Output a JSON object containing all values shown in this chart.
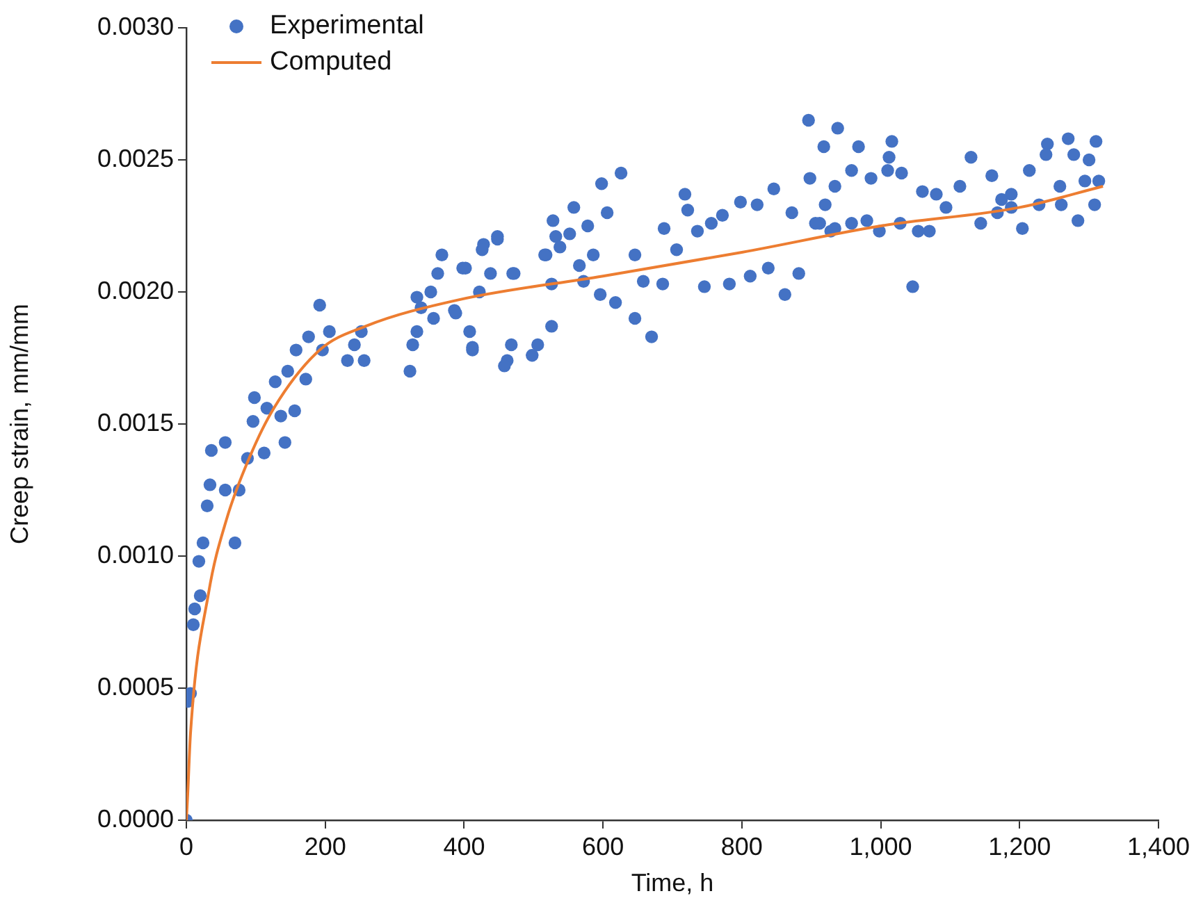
{
  "chart_data": {
    "type": "scatter",
    "xlabel": "Time, h",
    "ylabel": "Creep strain, mm/mm",
    "xlim": [
      0,
      1400
    ],
    "ylim": [
      0,
      0.003
    ],
    "xticks": [
      0,
      200,
      400,
      600,
      800,
      {
        "value": 1000,
        "label": "1,000"
      },
      {
        "value": 1200,
        "label": "1,200"
      },
      {
        "value": 1400,
        "label": "1,400"
      }
    ],
    "yticks": [
      {
        "value": 0,
        "label": "0.0000"
      },
      0.0005,
      {
        "value": 0.001,
        "label": "0.0010"
      },
      0.0015,
      {
        "value": 0.002,
        "label": "0.0020"
      },
      0.0025,
      {
        "value": 0.003,
        "label": "0.0030"
      }
    ],
    "legend": "top left",
    "series": [
      {
        "name": "Experimental",
        "marker": "circle",
        "color": "#4472c4",
        "x": [
          0,
          2,
          6,
          10,
          12,
          20,
          18,
          24,
          30,
          34,
          36,
          56,
          56,
          70,
          76,
          88,
          98,
          96,
          112,
          116,
          136,
          142,
          128,
          146,
          156,
          158,
          172,
          176,
          192,
          196,
          206,
          232,
          242,
          252,
          256,
          322,
          326,
          332,
          332,
          352,
          356,
          338,
          368,
          362,
          388,
          402,
          408,
          412,
          428,
          422,
          448,
          438,
          462,
          468,
          470,
          498,
          506,
          526,
          526,
          518,
          532,
          458,
          598,
          626,
          558,
          528,
          578,
          606,
          572,
          596,
          618,
          646,
          670,
          646,
          658,
          686,
          688,
          718,
          722,
          706,
          736,
          746,
          756,
          772,
          782,
          798,
          812,
          822,
          838,
          846,
          862,
          872,
          882,
          896,
          918,
          898,
          912,
          928,
          398,
          426,
          448,
          472,
          386,
          412,
          566,
          586,
          552,
          538,
          516,
          938,
          968,
          1016,
          1012,
          1010,
          1030,
          1046,
          1130,
          958,
          986,
          934,
          920,
          906,
          934,
          958,
          980,
          998,
          1028,
          1054,
          1070,
          1060,
          1080,
          1094,
          1114,
          1144,
          1160,
          1168,
          1188,
          1204,
          1214,
          1228,
          1240,
          1238,
          1258,
          1270,
          1278,
          1284,
          1294,
          1300,
          1310,
          1308,
          1314,
          1260,
          1188,
          1174
        ],
        "values": [
          0,
          0.00045,
          0.00048,
          0.00074,
          0.0008,
          0.00085,
          0.00098,
          0.00105,
          0.00119,
          0.00127,
          0.0014,
          0.00143,
          0.00125,
          0.00105,
          0.00125,
          0.00137,
          0.0016,
          0.00151,
          0.00139,
          0.00156,
          0.00153,
          0.00143,
          0.00166,
          0.0017,
          0.00155,
          0.00178,
          0.00167,
          0.00183,
          0.00195,
          0.00178,
          0.00185,
          0.00174,
          0.0018,
          0.00185,
          0.00174,
          0.0017,
          0.0018,
          0.00185,
          0.00198,
          0.002,
          0.0019,
          0.00194,
          0.00214,
          0.00207,
          0.00192,
          0.00209,
          0.00185,
          0.00178,
          0.00218,
          0.002,
          0.0022,
          0.00207,
          0.00174,
          0.0018,
          0.00207,
          0.00176,
          0.0018,
          0.00187,
          0.00203,
          0.00214,
          0.00221,
          0.00172,
          0.00241,
          0.00245,
          0.00232,
          0.00227,
          0.00225,
          0.0023,
          0.00204,
          0.00199,
          0.00196,
          0.0019,
          0.00183,
          0.00214,
          0.00204,
          0.00203,
          0.00224,
          0.00237,
          0.00231,
          0.00216,
          0.00223,
          0.00202,
          0.00226,
          0.00229,
          0.00203,
          0.00234,
          0.00206,
          0.00233,
          0.00209,
          0.00239,
          0.00199,
          0.0023,
          0.00207,
          0.00265,
          0.00255,
          0.00243,
          0.00226,
          0.00223,
          0.00209,
          0.00216,
          0.00221,
          0.00207,
          0.00193,
          0.00179,
          0.0021,
          0.00214,
          0.00222,
          0.00217,
          0.00214,
          0.00262,
          0.00255,
          0.00257,
          0.00251,
          0.00246,
          0.00245,
          0.00202,
          0.00251,
          0.00246,
          0.00243,
          0.0024,
          0.00233,
          0.00226,
          0.00224,
          0.00226,
          0.00227,
          0.00223,
          0.00226,
          0.00223,
          0.00223,
          0.00238,
          0.00237,
          0.00232,
          0.0024,
          0.00226,
          0.00244,
          0.0023,
          0.00237,
          0.00224,
          0.00246,
          0.00233,
          0.00256,
          0.00252,
          0.0024,
          0.00258,
          0.00252,
          0.00227,
          0.00242,
          0.0025,
          0.00257,
          0.00233,
          0.00242,
          0.00233,
          0.00232,
          0.00235
        ]
      },
      {
        "name": "Computed",
        "type": "line",
        "marker": "none",
        "color": "#ed7d31",
        "x": [
          0,
          2,
          6,
          32,
          58,
          92,
          126,
          192,
          258,
          392,
          600,
          800,
          1000,
          1200,
          1320
        ],
        "values": [
          0,
          0.0001,
          0.00033,
          0.00086,
          0.00114,
          0.00138,
          0.00156,
          0.00178,
          0.00187,
          0.00197,
          0.00206,
          0.00215,
          0.00225,
          0.00232,
          0.0024
        ]
      }
    ]
  }
}
